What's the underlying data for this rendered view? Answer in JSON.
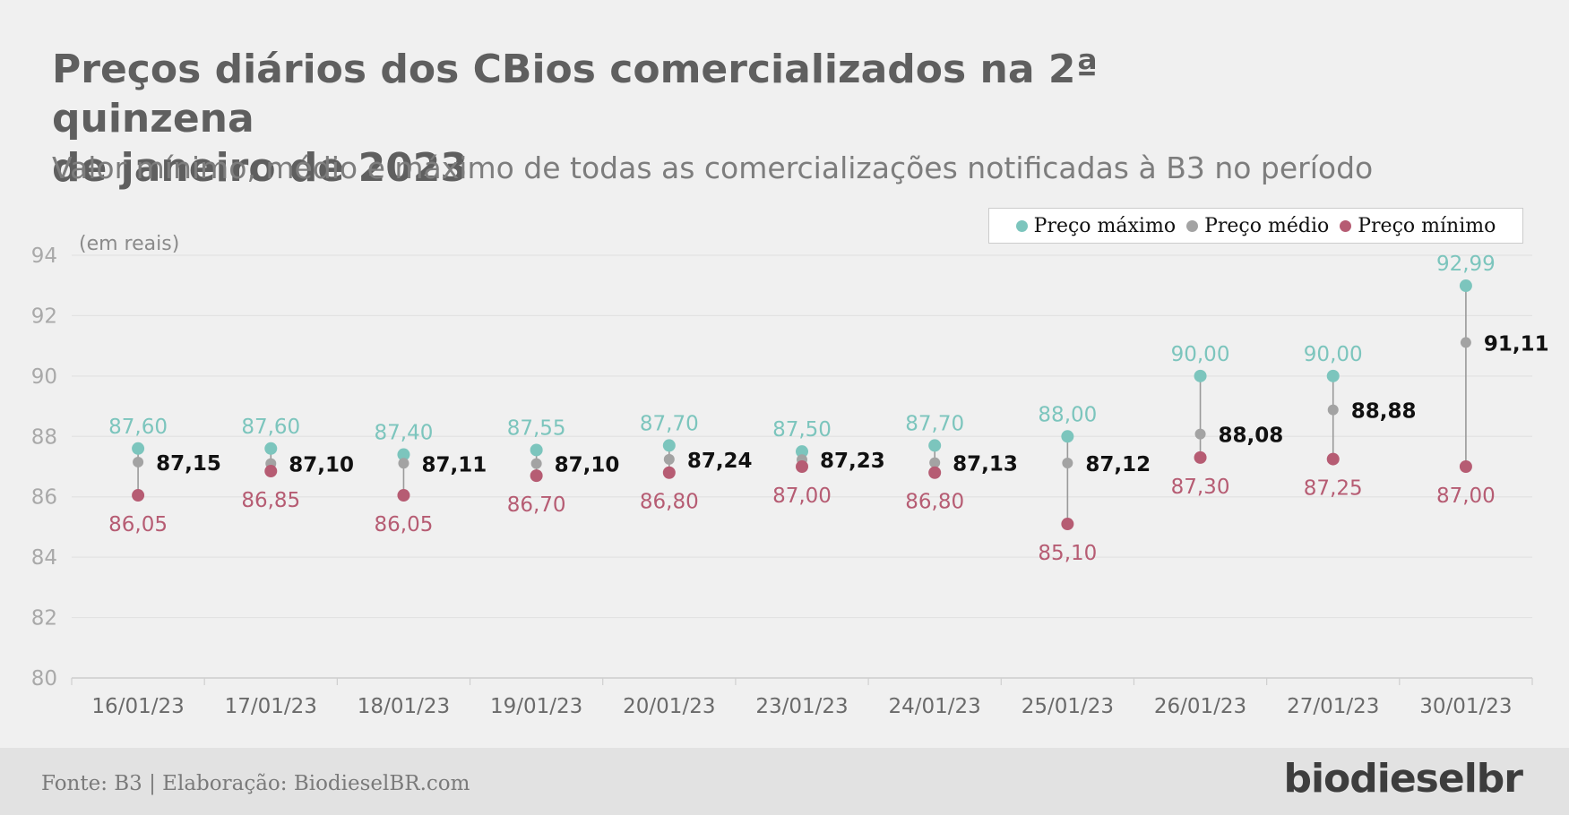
{
  "title_line1": "Preços diários dos CBios comercializados  na 2ª quinzena",
  "title_line2": "de janeiro de 2023",
  "subtitle": "Valor mínimo, médio e máximo de todas as comercializações notificadas à B3 no período",
  "unit_label": "(em reais)",
  "legend": {
    "max_label": "Preço máximo",
    "avg_label": "Preço médio",
    "min_label": "Preço mínimo"
  },
  "colors": {
    "max": "#7cc5bd",
    "avg": "#a3a3a3",
    "min": "#b65c73",
    "avg_label": "#111111",
    "axis_text": "#a9a9a9",
    "grid": "#e2e2e2",
    "connector": "#9a9a9a"
  },
  "footer": {
    "source": "Fonte: B3 | Elaboração: BiodieselBR.com",
    "logo": "biodieselbr"
  },
  "chart_data": {
    "type": "scatter",
    "title": "Preços diários dos CBios comercializados  na 2ª quinzena de janeiro de 2023",
    "subtitle": "Valor mínimo, médio e máximo de todas as comercializações notificadas à B3 no período",
    "ylabel": "(em reais)",
    "xlabel": "",
    "ylim": [
      80,
      94
    ],
    "yticks": [
      "80",
      "82",
      "84",
      "86",
      "88",
      "90",
      "92",
      "94"
    ],
    "grid": true,
    "legend_position": "top-right",
    "categories": [
      "16/01/23",
      "17/01/23",
      "18/01/23",
      "19/01/23",
      "20/01/23",
      "23/01/23",
      "24/01/23",
      "25/01/23",
      "26/01/23",
      "27/01/23",
      "30/01/23"
    ],
    "series": [
      {
        "name": "Preço máximo",
        "values": [
          87.6,
          87.6,
          87.4,
          87.55,
          87.7,
          87.5,
          87.7,
          88.0,
          90.0,
          90.0,
          92.99
        ],
        "labels": [
          "87,60",
          "87,60",
          "87,40",
          "87,55",
          "87,70",
          "87,50",
          "87,70",
          "88,00",
          "90,00",
          "90,00",
          "92,99"
        ]
      },
      {
        "name": "Preço médio",
        "values": [
          87.15,
          87.1,
          87.11,
          87.1,
          87.24,
          87.23,
          87.13,
          87.12,
          88.08,
          88.88,
          91.11
        ],
        "labels": [
          "87,15",
          "87,10",
          "87,11",
          "87,10",
          "87,24",
          "87,23",
          "87,13",
          "87,12",
          "88,08",
          "88,88",
          "91,11"
        ]
      },
      {
        "name": "Preço mínimo",
        "values": [
          86.05,
          86.85,
          86.05,
          86.7,
          86.8,
          87.0,
          86.8,
          85.1,
          87.3,
          87.25,
          87.0
        ],
        "labels": [
          "86,05",
          "86,85",
          "86,05",
          "86,70",
          "86,80",
          "87,00",
          "86,80",
          "85,10",
          "87,30",
          "87,25",
          "87,00"
        ]
      }
    ]
  }
}
